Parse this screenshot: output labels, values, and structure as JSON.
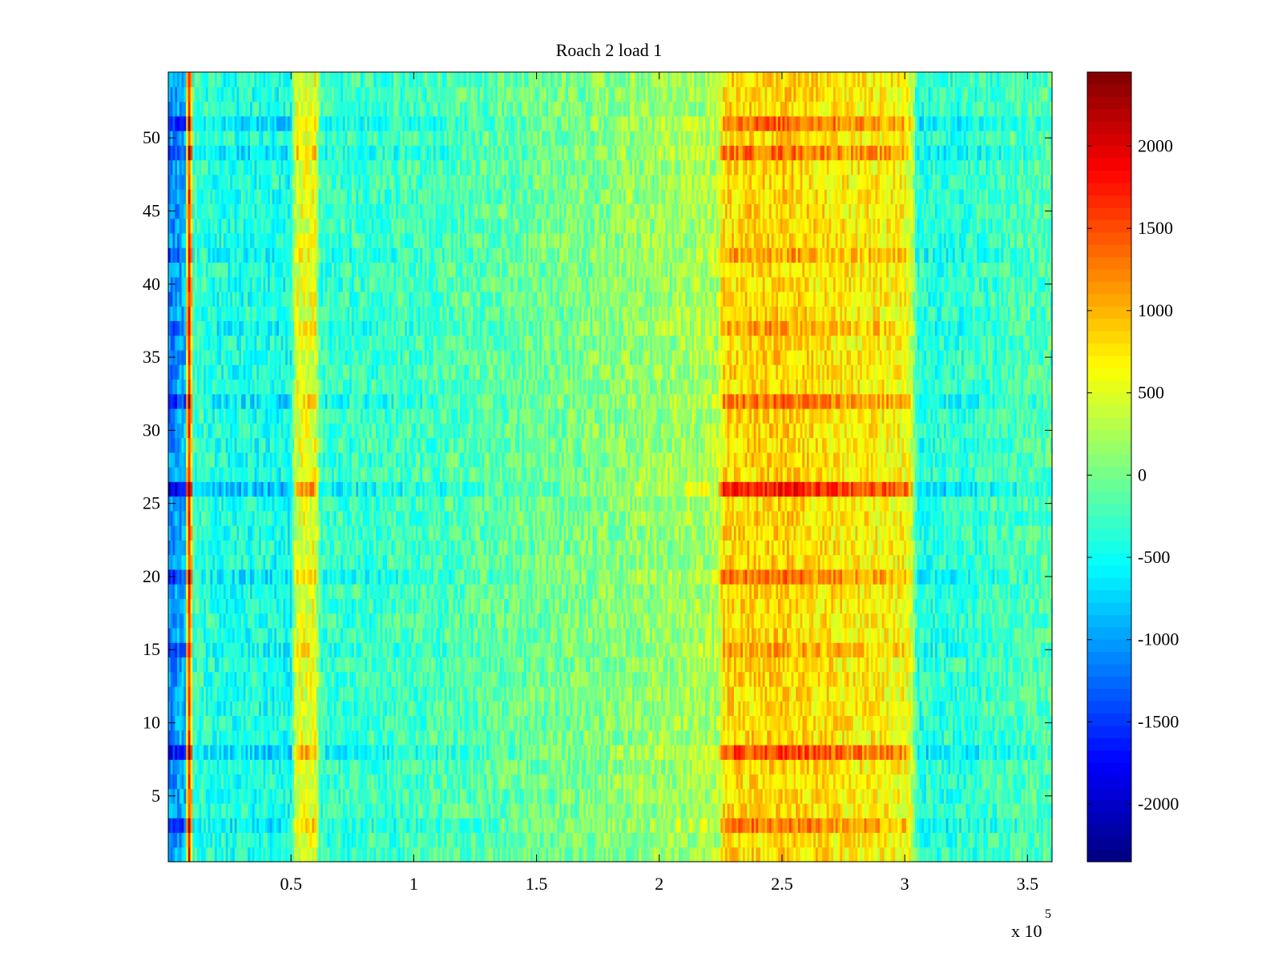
{
  "chart_data": {
    "type": "heatmap",
    "title": "Roach 2 load 1",
    "xlabel": "",
    "ylabel": "",
    "x_exponent_label": "x 10",
    "x_exponent_power": "5",
    "x_range": [
      0,
      3.6
    ],
    "y_range": [
      0.5,
      54.5
    ],
    "x_ticks": [
      {
        "value": 0.5,
        "label": "0.5"
      },
      {
        "value": 1,
        "label": "1"
      },
      {
        "value": 1.5,
        "label": "1.5"
      },
      {
        "value": 2,
        "label": "2"
      },
      {
        "value": 2.5,
        "label": "2.5"
      },
      {
        "value": 3,
        "label": "3"
      },
      {
        "value": 3.5,
        "label": "3.5"
      }
    ],
    "y_ticks": [
      {
        "value": 5,
        "label": "5"
      },
      {
        "value": 10,
        "label": "10"
      },
      {
        "value": 15,
        "label": "15"
      },
      {
        "value": 20,
        "label": "20"
      },
      {
        "value": 25,
        "label": "25"
      },
      {
        "value": 30,
        "label": "30"
      },
      {
        "value": 35,
        "label": "35"
      },
      {
        "value": 40,
        "label": "40"
      },
      {
        "value": 45,
        "label": "45"
      },
      {
        "value": 50,
        "label": "50"
      }
    ],
    "colorbar": {
      "range": [
        -2350,
        2450
      ],
      "ticks": [
        {
          "value": 2000,
          "label": "2000"
        },
        {
          "value": 1500,
          "label": "1500"
        },
        {
          "value": 1000,
          "label": "1000"
        },
        {
          "value": 500,
          "label": "500"
        },
        {
          "value": 0,
          "label": "0"
        },
        {
          "value": -500,
          "label": "-500"
        },
        {
          "value": -1000,
          "label": "-1000"
        },
        {
          "value": -1500,
          "label": "-1500"
        },
        {
          "value": -2000,
          "label": "-2000"
        }
      ],
      "colormap": "jet"
    },
    "rows": 54,
    "columns": 400,
    "column_profile": [
      {
        "x": 0.0,
        "value": -1100
      },
      {
        "x": 0.07,
        "value": -900
      },
      {
        "x": 0.08,
        "value": 1600
      },
      {
        "x": 0.09,
        "value": 1700
      },
      {
        "x": 0.1,
        "value": -250
      },
      {
        "x": 0.2,
        "value": -400
      },
      {
        "x": 0.5,
        "value": -450
      },
      {
        "x": 0.52,
        "value": 500
      },
      {
        "x": 0.6,
        "value": 550
      },
      {
        "x": 0.62,
        "value": -300
      },
      {
        "x": 1.0,
        "value": -250
      },
      {
        "x": 1.5,
        "value": -50
      },
      {
        "x": 2.0,
        "value": 150
      },
      {
        "x": 2.24,
        "value": 250
      },
      {
        "x": 2.26,
        "value": 800
      },
      {
        "x": 2.5,
        "value": 850
      },
      {
        "x": 2.8,
        "value": 700
      },
      {
        "x": 3.0,
        "value": 650
      },
      {
        "x": 3.03,
        "value": 400
      },
      {
        "x": 3.05,
        "value": -400
      },
      {
        "x": 3.3,
        "value": -300
      },
      {
        "x": 3.6,
        "value": -150
      }
    ],
    "emphasized_rows": [
      {
        "row": 26,
        "strength": 1.0
      },
      {
        "row": 8,
        "strength": 0.75
      },
      {
        "row": 51,
        "strength": 0.6
      },
      {
        "row": 49,
        "strength": 0.55
      },
      {
        "row": 32,
        "strength": 0.55
      },
      {
        "row": 20,
        "strength": 0.5
      },
      {
        "row": 3,
        "strength": 0.5
      },
      {
        "row": 42,
        "strength": 0.3
      },
      {
        "row": 37,
        "strength": 0.3
      },
      {
        "row": 15,
        "strength": 0.25
      }
    ]
  }
}
